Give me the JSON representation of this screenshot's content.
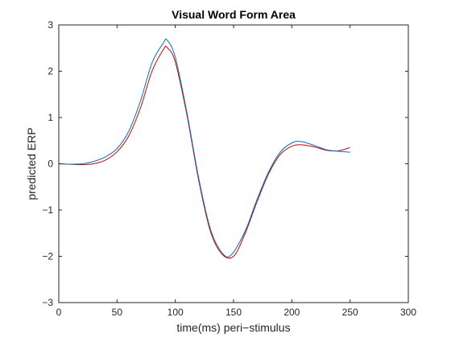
{
  "chart_data": {
    "type": "line",
    "title": "Visual Word Form Area",
    "xlabel": "time(ms) peri−stimulus",
    "ylabel": "predicted ERP",
    "xlim": [
      0,
      300
    ],
    "ylim": [
      -3,
      3
    ],
    "xticks": [
      0,
      50,
      100,
      150,
      200,
      250,
      300
    ],
    "yticks": [
      3,
      2,
      1,
      0,
      -1,
      -2,
      -3
    ],
    "xtick_labels": [
      "0",
      "50",
      "100",
      "150",
      "200",
      "250",
      "300"
    ],
    "ytick_labels": [
      "3",
      "2",
      "1",
      "0",
      "−1",
      "−2",
      "−3"
    ],
    "grid": false,
    "legend": "none",
    "series": [
      {
        "color": "#0072BD",
        "x": [
          0,
          10,
          20,
          30,
          40,
          50,
          60,
          70,
          80,
          90,
          93,
          100,
          110,
          120,
          130,
          140,
          148,
          160,
          170,
          180,
          190,
          200,
          208,
          220,
          230,
          240,
          250
        ],
        "y": [
          0.0,
          -0.01,
          0.0,
          0.05,
          0.15,
          0.33,
          0.7,
          1.35,
          2.18,
          2.62,
          2.67,
          2.3,
          1.1,
          -0.3,
          -1.4,
          -1.92,
          -1.97,
          -1.45,
          -0.78,
          -0.18,
          0.25,
          0.45,
          0.48,
          0.39,
          0.3,
          0.27,
          0.25
        ]
      },
      {
        "color": "#D00000",
        "x": [
          0,
          10,
          20,
          30,
          40,
          50,
          60,
          70,
          80,
          90,
          93,
          100,
          110,
          120,
          130,
          140,
          150,
          160,
          170,
          180,
          190,
          200,
          208,
          220,
          230,
          240,
          250
        ],
        "y": [
          0.0,
          -0.01,
          -0.02,
          0.0,
          0.08,
          0.26,
          0.6,
          1.2,
          2.0,
          2.48,
          2.51,
          2.2,
          1.05,
          -0.35,
          -1.45,
          -1.95,
          -2.0,
          -1.5,
          -0.83,
          -0.22,
          0.2,
          0.38,
          0.41,
          0.36,
          0.29,
          0.28,
          0.35
        ]
      }
    ]
  }
}
